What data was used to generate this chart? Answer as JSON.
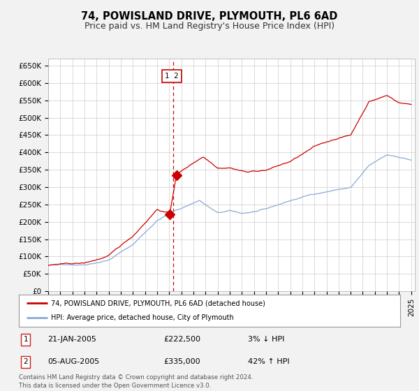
{
  "title": "74, POWISLAND DRIVE, PLYMOUTH, PL6 6AD",
  "subtitle": "Price paid vs. HM Land Registry's House Price Index (HPI)",
  "ylabel_ticks": [
    "£0",
    "£50K",
    "£100K",
    "£150K",
    "£200K",
    "£250K",
    "£300K",
    "£350K",
    "£400K",
    "£450K",
    "£500K",
    "£550K",
    "£600K",
    "£650K"
  ],
  "ytick_values": [
    0,
    50000,
    100000,
    150000,
    200000,
    250000,
    300000,
    350000,
    400000,
    450000,
    500000,
    550000,
    600000,
    650000
  ],
  "ylim": [
    0,
    670000
  ],
  "xlim_start": 1995.0,
  "xlim_end": 2025.3,
  "red_line_color": "#cc0000",
  "blue_line_color": "#88aad4",
  "dashed_vline_color": "#cc0000",
  "background_color": "#f2f2f2",
  "plot_bg_color": "#ffffff",
  "grid_color": "#cccccc",
  "transaction1_price": 222500,
  "transaction1_hpi": "3% ↓ HPI",
  "transaction1_date": "21-JAN-2005",
  "transaction2_price": 335000,
  "transaction2_hpi": "42% ↑ HPI",
  "transaction2_date": "05-AUG-2005",
  "transaction1_x": 2005.05,
  "transaction2_x": 2005.6,
  "vline_x": 2005.35,
  "legend_label_red": "74, POWISLAND DRIVE, PLYMOUTH, PL6 6AD (detached house)",
  "legend_label_blue": "HPI: Average price, detached house, City of Plymouth",
  "footer": "Contains HM Land Registry data © Crown copyright and database right 2024.\nThis data is licensed under the Open Government Licence v3.0.",
  "title_fontsize": 10.5,
  "subtitle_fontsize": 9,
  "tick_fontsize": 7.5
}
